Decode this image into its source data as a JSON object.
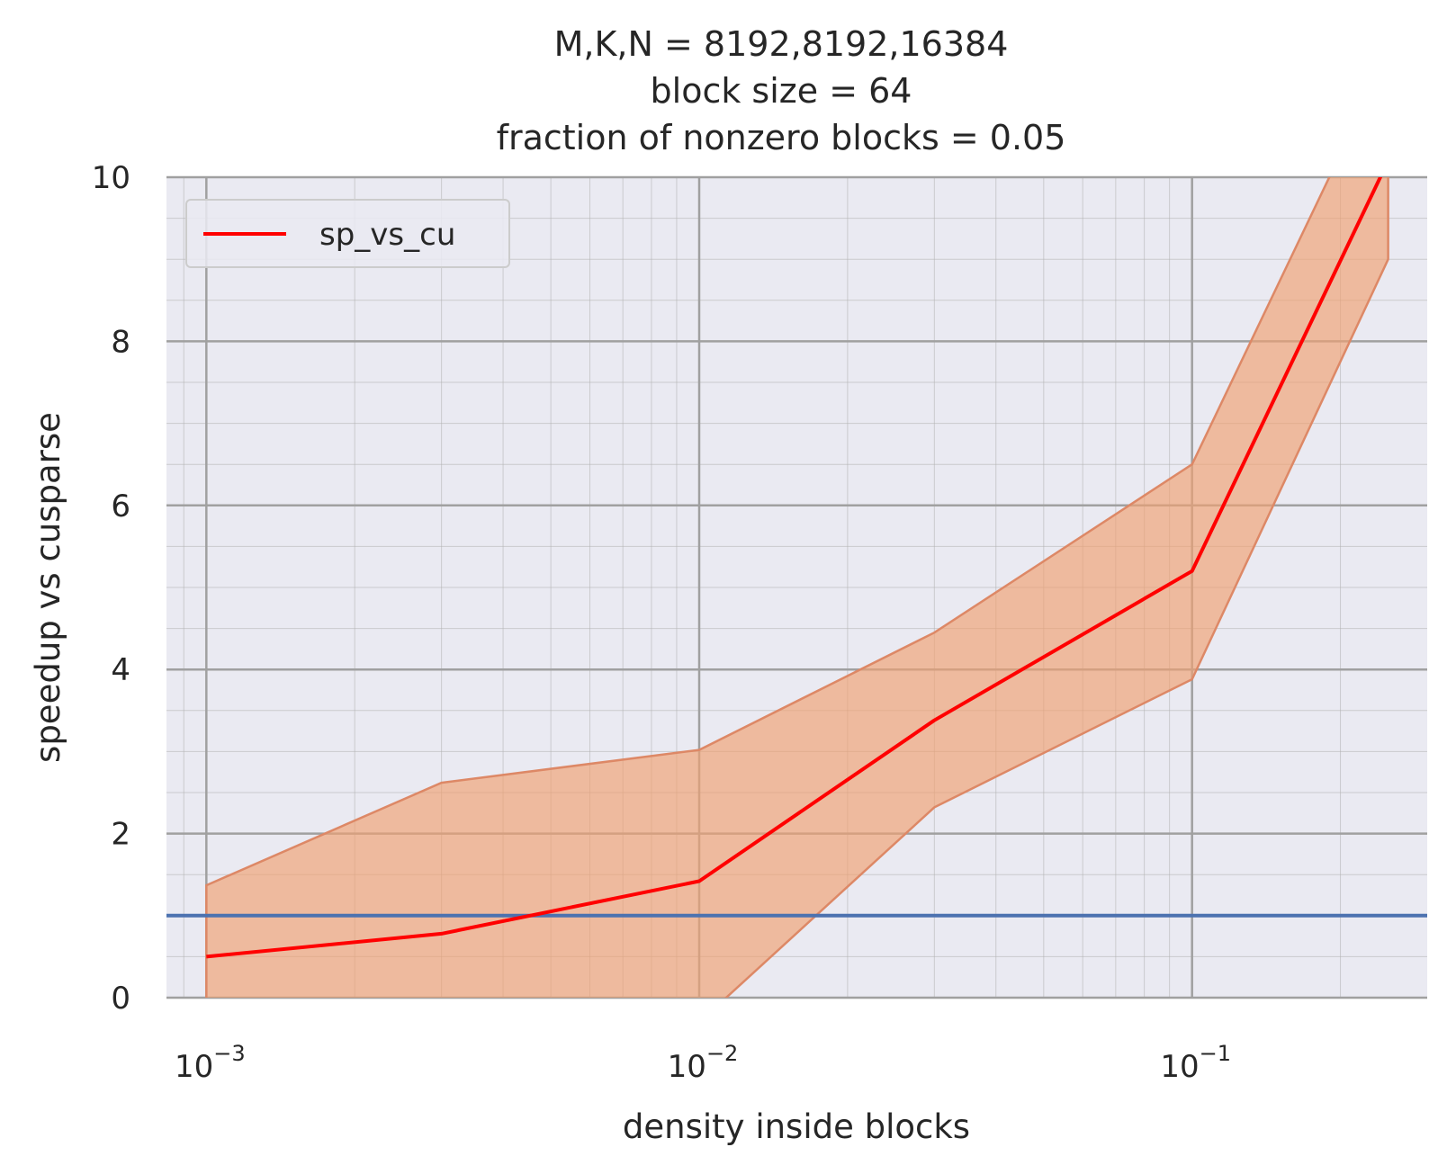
{
  "chart_data": {
    "type": "line",
    "title_lines": [
      "M,K,N = 8192,8192,16384",
      "block size = 64",
      "fraction of nonzero blocks = 0.05"
    ],
    "xlabel": "density inside blocks",
    "ylabel": "speedup vs cusparse",
    "x_scale": "log",
    "xlim": [
      0.00083,
      0.3
    ],
    "ylim": [
      0,
      10
    ],
    "x_ticks": [
      {
        "value": 0.001,
        "base": "10",
        "exp": "−3"
      },
      {
        "value": 0.01,
        "base": "10",
        "exp": "−2"
      },
      {
        "value": 0.1,
        "base": "10",
        "exp": "−1"
      }
    ],
    "y_ticks": [
      0,
      2,
      4,
      6,
      8,
      10
    ],
    "grid": true,
    "legend": {
      "position": "top-left",
      "entries": [
        "sp_vs_cu"
      ]
    },
    "series": [
      {
        "name": "sp_vs_cu",
        "color": "#ff0000",
        "x": [
          0.001,
          0.003,
          0.01,
          0.03,
          0.1,
          0.25
        ],
        "y": [
          0.5,
          0.78,
          1.42,
          3.38,
          5.2,
          10.2
        ]
      }
    ],
    "band": {
      "color": "#f0a070",
      "edge_color": "#dd8866",
      "x": [
        0.001,
        0.003,
        0.01,
        0.03,
        0.1,
        0.25
      ],
      "upper": [
        1.37,
        2.62,
        3.02,
        4.45,
        6.5,
        11.5
      ],
      "lower": [
        -0.4,
        -1.0,
        -0.3,
        2.32,
        3.88,
        9.0
      ]
    },
    "reference_line": {
      "y": 1.0,
      "color": "#4c72b0"
    }
  }
}
